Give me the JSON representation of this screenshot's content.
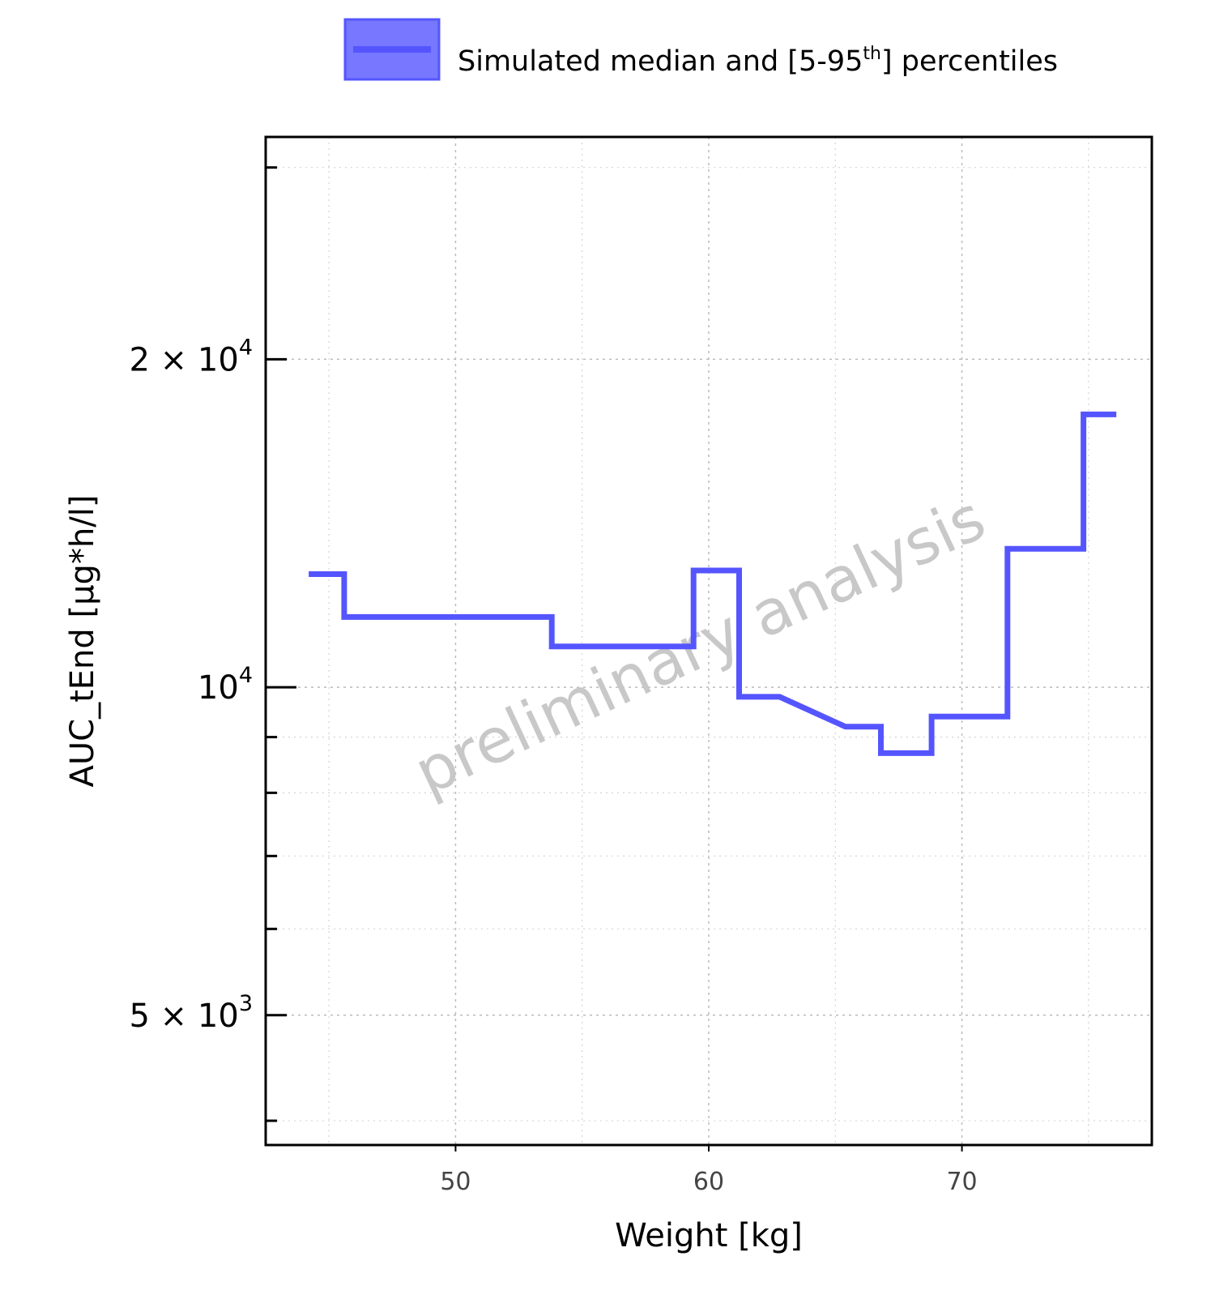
{
  "chart_data": {
    "type": "line",
    "step": true,
    "legend": {
      "position": "top",
      "entries": [
        {
          "label_main": "Simulated median and [5-95",
          "label_sup": "th",
          "label_end": "] percentiles",
          "color": "#5555ff"
        }
      ]
    },
    "xlabel": "Weight [kg]",
    "ylabel": "AUC_tEnd [µg*h/l]",
    "watermark": "preliminary analysis",
    "xlim": [
      42.5,
      77.5
    ],
    "ylim": [
      3800,
      32000
    ],
    "y_scale": "log",
    "grid": true,
    "x_ticks": [
      {
        "value": 50,
        "label": "50"
      },
      {
        "value": 60,
        "label": "60"
      },
      {
        "value": 70,
        "label": "70"
      }
    ],
    "y_ticks": [
      {
        "value": 5000,
        "mantissa": "5",
        "exponent": "3"
      },
      {
        "value": 10000,
        "mantissa": "",
        "exponent": "4"
      },
      {
        "value": 20000,
        "mantissa": "2",
        "exponent": "4"
      }
    ],
    "y_minor_ticks": [
      4000,
      6000,
      7000,
      8000,
      9000,
      30000
    ],
    "x_minor_gridlines": [
      45,
      55,
      65,
      75
    ],
    "series": [
      {
        "color": "#5555ff",
        "points": [
          [
            44.2,
            12700
          ],
          [
            45.6,
            12700
          ],
          [
            45.6,
            11600
          ],
          [
            53.8,
            11600
          ],
          [
            53.8,
            10900
          ],
          [
            59.4,
            10900
          ],
          [
            59.4,
            12800
          ],
          [
            61.2,
            12800
          ],
          [
            61.2,
            9800
          ],
          [
            62.8,
            9800
          ],
          [
            65.4,
            9200
          ],
          [
            66.8,
            9200
          ],
          [
            66.8,
            8700
          ],
          [
            68.8,
            8700
          ],
          [
            68.8,
            9400
          ],
          [
            71.8,
            9400
          ],
          [
            71.8,
            13400
          ],
          [
            74.8,
            13400
          ],
          [
            74.8,
            17800
          ],
          [
            76.1,
            17800
          ]
        ]
      }
    ]
  }
}
